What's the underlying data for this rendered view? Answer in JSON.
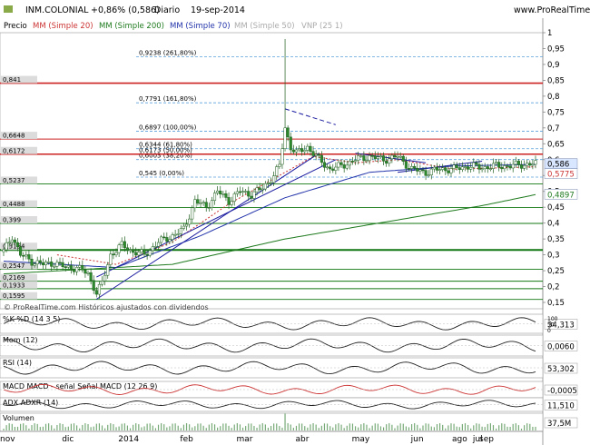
{
  "header": {
    "symbol": "INM.COLONIAL",
    "change": "+0,86% (0,586)",
    "period": "Diario",
    "date": "19-sep-2014",
    "site": "www.ProRealTime.com"
  },
  "legend": {
    "price": "Precio",
    "sma20": "MM (Simple 20)",
    "sma200": "MM (Simple 200)",
    "sma70": "MM (Simple 70)",
    "sma50": "MM (Simple 50)",
    "vnp": "VNP (25 1)"
  },
  "colors": {
    "candle_up": "#2e8b2e",
    "candle_down": "#2e8b2e",
    "sma20": "#cc3333",
    "sma200": "#1e7a1e",
    "sma70": "#2233aa",
    "trendline": "#1a1aa0",
    "hline_red": "#cc2222",
    "hline_green": "#117711",
    "fibo": "#5aa0dc",
    "price_label_bg": "#d9e6ff",
    "indicator_fill_green": "#9ec79e",
    "indicator_fill_red": "#e6a0a0"
  },
  "watermark": "© ProRealTime.com   Históricos ajustados con dividendos",
  "fibonacci": [
    {
      "label": "0,9238 (261,80%)",
      "price": 0.9238
    },
    {
      "label": "0,7791 (161,80%)",
      "price": 0.7791
    },
    {
      "label": "0,6897 (100,00%)",
      "price": 0.6897
    },
    {
      "label": "0,6344 (61,80%)",
      "price": 0.6344
    },
    {
      "label": "0,6173 (50,00%)",
      "price": 0.6173
    },
    {
      "label": "0,6003 (38,20%)",
      "price": 0.6003
    },
    {
      "label": "0,545 (0,00%)",
      "price": 0.545
    }
  ],
  "horizontal_levels": [
    {
      "label": "0,841",
      "price": 0.841
    },
    {
      "label": "0,6648",
      "price": 0.6648
    },
    {
      "label": "0,6172",
      "price": 0.6172
    },
    {
      "label": "0,5237",
      "price": 0.5237
    },
    {
      "label": "0,4488",
      "price": 0.4488
    },
    {
      "label": "0,399",
      "price": 0.399
    },
    {
      "label": "0,3154",
      "price": 0.3154
    },
    {
      "label": "0,2547",
      "price": 0.2547
    },
    {
      "label": "0,2169",
      "price": 0.2169
    },
    {
      "label": "0,1933",
      "price": 0.1933
    },
    {
      "label": "0,1595",
      "price": 0.1595
    }
  ],
  "price_labels": {
    "last": "0,586",
    "sma20": "0,5775",
    "sma200": "0,4897"
  },
  "price_axis": [
    "1",
    "0,95",
    "0,9",
    "0,85",
    "0,8",
    "0,75",
    "0,7",
    "0,65",
    "0,6",
    "0,55",
    "0,5",
    "0,45",
    "0,4",
    "0,35",
    "0,3",
    "0,25",
    "0,2",
    "0,15"
  ],
  "time_axis": [
    "nov",
    "dic",
    "2014",
    "feb",
    "mar",
    "abr",
    "may",
    "jun",
    "jul",
    "ago",
    "sep"
  ],
  "chart_data": {
    "type": "candlestick",
    "title": "INM.COLONIAL",
    "ylim": [
      0.13,
      1.0
    ],
    "x": [
      "nov",
      "dic",
      "2014",
      "feb",
      "mar",
      "abr",
      "may",
      "jun",
      "jul",
      "ago",
      "sep"
    ],
    "series": [
      {
        "name": "Precio",
        "anchors": [
          [
            0,
            0.31
          ],
          [
            3,
            0.36
          ],
          [
            6,
            0.3
          ],
          [
            10,
            0.28
          ],
          [
            14,
            0.27
          ],
          [
            18,
            0.275
          ],
          [
            22,
            0.26
          ],
          [
            26,
            0.26
          ],
          [
            30,
            0.24
          ],
          [
            33,
            0.18
          ],
          [
            35,
            0.21
          ],
          [
            38,
            0.3
          ],
          [
            42,
            0.33
          ],
          [
            46,
            0.31
          ],
          [
            50,
            0.3
          ],
          [
            55,
            0.34
          ],
          [
            60,
            0.36
          ],
          [
            64,
            0.38
          ],
          [
            68,
            0.47
          ],
          [
            72,
            0.45
          ],
          [
            76,
            0.5
          ],
          [
            80,
            0.47
          ],
          [
            84,
            0.5
          ],
          [
            88,
            0.49
          ],
          [
            92,
            0.51
          ],
          [
            96,
            0.55
          ],
          [
            98,
            0.58
          ],
          [
            100,
            0.7
          ],
          [
            102,
            0.64
          ],
          [
            104,
            0.62
          ],
          [
            108,
            0.64
          ],
          [
            112,
            0.6
          ],
          [
            116,
            0.57
          ],
          [
            120,
            0.58
          ],
          [
            125,
            0.6
          ],
          [
            130,
            0.61
          ],
          [
            135,
            0.6
          ],
          [
            140,
            0.61
          ],
          [
            145,
            0.57
          ],
          [
            150,
            0.56
          ],
          [
            155,
            0.57
          ],
          [
            160,
            0.57
          ],
          [
            165,
            0.58
          ],
          [
            170,
            0.575
          ],
          [
            175,
            0.58
          ],
          [
            180,
            0.58
          ],
          [
            185,
            0.585
          ],
          [
            189,
            0.586
          ]
        ]
      },
      {
        "name": "MM (Simple 20)",
        "anchors": [
          [
            19,
            0.3
          ],
          [
            40,
            0.27
          ],
          [
            60,
            0.34
          ],
          [
            80,
            0.46
          ],
          [
            100,
            0.56
          ],
          [
            110,
            0.61
          ],
          [
            125,
            0.59
          ],
          [
            140,
            0.6
          ],
          [
            160,
            0.57
          ],
          [
            189,
            0.5775
          ]
        ]
      },
      {
        "name": "MM (Simple 70)",
        "anchors": [
          [
            0,
            0.28
          ],
          [
            40,
            0.26
          ],
          [
            70,
            0.36
          ],
          [
            100,
            0.48
          ],
          [
            130,
            0.56
          ],
          [
            160,
            0.58
          ],
          [
            189,
            0.585
          ]
        ]
      },
      {
        "name": "MM (Simple 200)",
        "anchors": [
          [
            0,
            0.24
          ],
          [
            60,
            0.27
          ],
          [
            100,
            0.35
          ],
          [
            140,
            0.41
          ],
          [
            170,
            0.455
          ],
          [
            189,
            0.4897
          ]
        ]
      }
    ]
  },
  "indicators": [
    {
      "name": "%K",
      "label": "%D (14 3 5)",
      "value": "34,313",
      "scale": [
        0,
        100
      ],
      "ticks": [
        "100",
        "50",
        "0"
      ]
    },
    {
      "name": "Mom (12)",
      "label": "",
      "value": "0,0060",
      "scale": [
        -0.1,
        0.1
      ],
      "ticks": []
    },
    {
      "name": "RSI (14)",
      "label": "",
      "value": "53,302",
      "scale": [
        0,
        100
      ],
      "ticks": []
    },
    {
      "name": "MACD",
      "label": "MACD - señal  Señal  MACD (12 26 9)",
      "value": "-0,0005",
      "scale": [
        -0.03,
        0.03
      ],
      "ticks": []
    },
    {
      "name": "ADX",
      "label": "ADXR (14)",
      "value": "11,510",
      "scale": [
        0,
        50
      ],
      "ticks": []
    },
    {
      "name": "Volumen",
      "label": "",
      "value": "37,5M",
      "scale": [
        0,
        100
      ],
      "ticks": []
    }
  ]
}
